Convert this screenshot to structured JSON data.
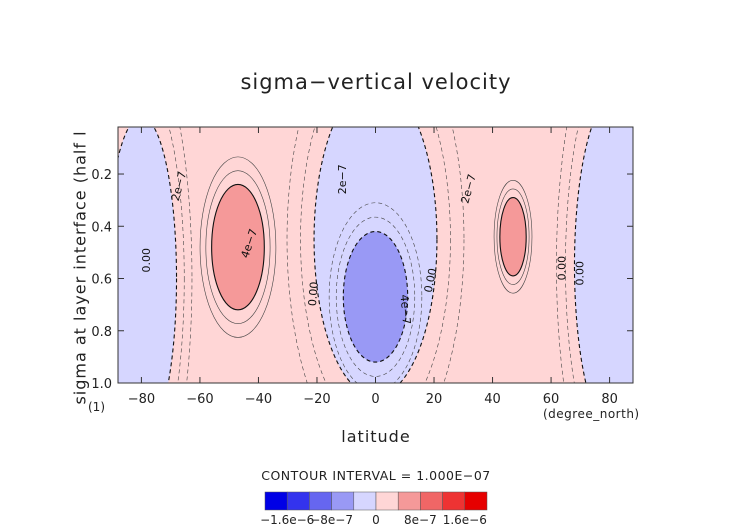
{
  "chart_data": {
    "type": "heatmap",
    "title": "sigma−vertical velocity",
    "xlabel": "latitude",
    "ylabel": "sigma at layer interface (half l",
    "y_unit": "(1)",
    "x_unit": "(degree_north)",
    "xlim": [
      -88,
      88
    ],
    "ylim": [
      1.0,
      0.02
    ],
    "x_ticks": [
      -80,
      -60,
      -40,
      -20,
      0,
      20,
      40,
      60,
      80
    ],
    "y_ticks": [
      0.2,
      0.4,
      0.6,
      0.8,
      1.0
    ],
    "y_tick_labels": [
      "0.2",
      "0.4",
      "0.6",
      "0.8",
      "1.0"
    ],
    "contour_interval_text": "CONTOUR INTERVAL = 1.000E−07",
    "colorbar": {
      "ticks": [
        {
          "label": "−1.6e−6",
          "value": -1.6e-06
        },
        {
          "label": "−8e−7",
          "value": -8e-07
        },
        {
          "label": "0",
          "value": 0
        },
        {
          "label": "8e−7",
          "value": 8e-07
        },
        {
          "label": "1.6e−6",
          "value": 1.6e-06
        }
      ],
      "colors": [
        "#0000e6",
        "#3333ee",
        "#6666f0",
        "#9999f5",
        "#d6d6ff",
        "#ffd6d6",
        "#f59999",
        "#f06666",
        "#ee3333",
        "#e60000"
      ],
      "range": [
        -2e-06,
        2e-06
      ]
    },
    "contour_labels": [
      {
        "text": "2e−7",
        "x": -66,
        "y": 0.25,
        "angle": -75
      },
      {
        "text": "4e−7",
        "x": -42,
        "y": 0.47,
        "angle": -72
      },
      {
        "text": "0.00",
        "x": -77,
        "y": 0.53,
        "angle": -90
      },
      {
        "text": "2e−7",
        "x": -10,
        "y": 0.22,
        "angle": -90
      },
      {
        "text": "0.00",
        "x": -20,
        "y": 0.66,
        "angle": -85
      },
      {
        "text": "4e−7",
        "x": 9,
        "y": 0.72,
        "angle": 85
      },
      {
        "text": "2e−7",
        "x": 33,
        "y": 0.26,
        "angle": -75
      },
      {
        "text": "0.00",
        "x": 20,
        "y": 0.61,
        "angle": -78
      },
      {
        "text": "0.00",
        "x": 71,
        "y": 0.58,
        "angle": -90
      },
      {
        "text": "0.00",
        "x": 65,
        "y": 0.56,
        "angle": -90
      }
    ],
    "regions": [
      {
        "level": 0,
        "sign": "positive",
        "desc": "background"
      },
      {
        "level": 1,
        "sign": "negative",
        "cx": -80,
        "cy": 0.6,
        "rx": 12,
        "ry": 0.62
      },
      {
        "level": 1,
        "sign": "negative",
        "cx": 0,
        "cy": 0.45,
        "rx": 21,
        "ry": 0.6
      },
      {
        "level": 1,
        "sign": "negative",
        "cx": 82,
        "cy": 0.55,
        "rx": 14,
        "ry": 0.65
      },
      {
        "level": 2,
        "sign": "positive",
        "cx": -47,
        "cy": 0.48,
        "rx": 9,
        "ry": 0.24
      },
      {
        "level": 2,
        "sign": "positive",
        "cx": 47,
        "cy": 0.44,
        "rx": 4.5,
        "ry": 0.15
      },
      {
        "level": 2,
        "sign": "negative",
        "cx": 0,
        "cy": 0.67,
        "rx": 11,
        "ry": 0.25
      }
    ]
  }
}
